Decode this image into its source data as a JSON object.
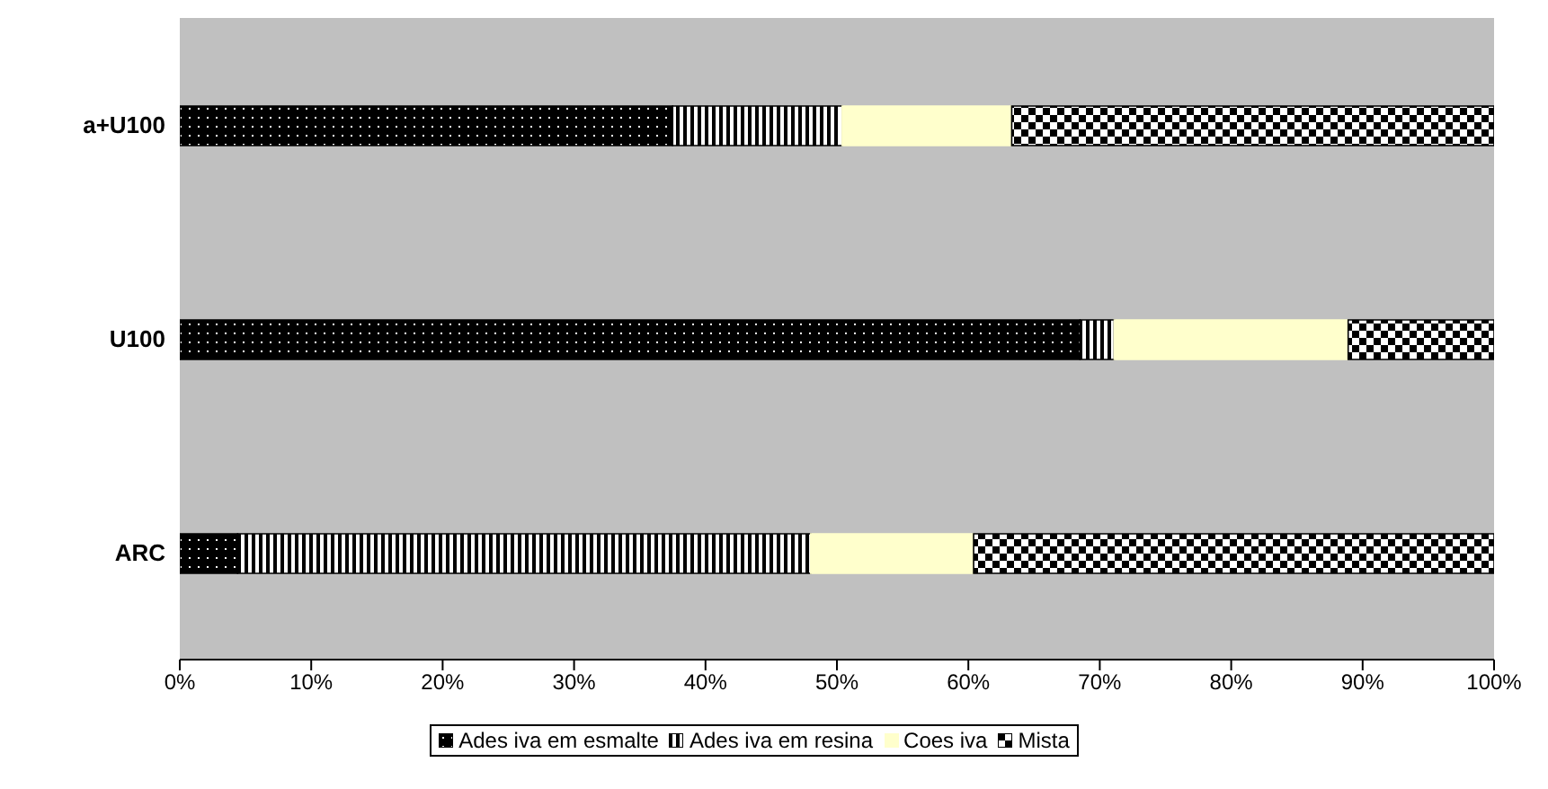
{
  "chart_data": {
    "type": "bar",
    "orientation": "horizontal",
    "stacked": true,
    "categories": [
      "a+U100",
      "U100",
      "ARC"
    ],
    "series": [
      {
        "name": "Ades iva em esmalte",
        "color": "#000000",
        "values": [
          37.5,
          68.5,
          4.4
        ]
      },
      {
        "name": "Ades iva em resina",
        "color": "#000000",
        "values": [
          12.9,
          2.6,
          43.6
        ]
      },
      {
        "name": "Coes iva",
        "color": "#ffffcc",
        "values": [
          12.9,
          17.8,
          12.4
        ]
      },
      {
        "name": "Mista",
        "color": "#000000",
        "values": [
          36.7,
          11.1,
          39.6
        ]
      }
    ],
    "xlim": [
      0,
      100
    ],
    "xticks": [
      {
        "value": 0,
        "label": "0%"
      },
      {
        "value": 10,
        "label": "10%"
      },
      {
        "value": 20,
        "label": "20%"
      },
      {
        "value": 30,
        "label": "30%"
      },
      {
        "value": 40,
        "label": "40%"
      },
      {
        "value": 50,
        "label": "50%"
      },
      {
        "value": 60,
        "label": "60%"
      },
      {
        "value": 70,
        "label": "70%"
      },
      {
        "value": 80,
        "label": "80%"
      },
      {
        "value": 90,
        "label": "90%"
      },
      {
        "value": 100,
        "label": "100%"
      }
    ],
    "grid": false,
    "legend": "bottom"
  }
}
